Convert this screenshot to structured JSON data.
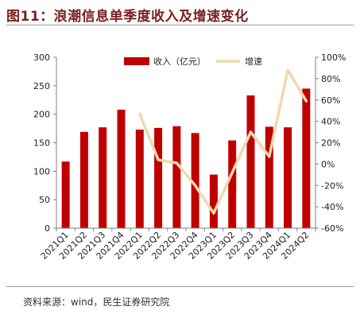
{
  "header": {
    "title": "图11：浪潮信息单季度收入及增速变化"
  },
  "footer": {
    "source": "资料来源：wind，民生证券研究院"
  },
  "chart_data": {
    "type": "bar",
    "categories": [
      "2021Q1",
      "2021Q2",
      "2021Q3",
      "2021Q4",
      "2022Q1",
      "2022Q2",
      "2022Q3",
      "2022Q4",
      "2023Q1",
      "2023Q2",
      "2023Q3",
      "2023Q4",
      "2024Q1",
      "2024Q2"
    ],
    "series": [
      {
        "name": "收入（亿元）",
        "type": "bar",
        "axis": "left",
        "values": [
          117,
          169,
          177,
          208,
          173,
          176,
          179,
          167,
          94,
          154,
          233,
          178,
          177,
          245
        ]
      },
      {
        "name": "增速",
        "type": "line",
        "axis": "right",
        "values": [
          null,
          null,
          null,
          null,
          47,
          4,
          1,
          -20,
          -46,
          -8,
          30,
          7,
          88,
          59
        ]
      }
    ],
    "ylim_left": [
      0,
      300
    ],
    "left_ticks": [
      "0",
      "50",
      "100",
      "150",
      "200",
      "250",
      "300"
    ],
    "ylim_right": [
      -60,
      100
    ],
    "right_ticks": [
      "-60%",
      "-40%",
      "-20%",
      "0%",
      "20%",
      "40%",
      "60%",
      "80%",
      "100%"
    ],
    "legend_position": "top",
    "colors": {
      "bar": "#c00000",
      "line": "#eed9b0"
    }
  }
}
